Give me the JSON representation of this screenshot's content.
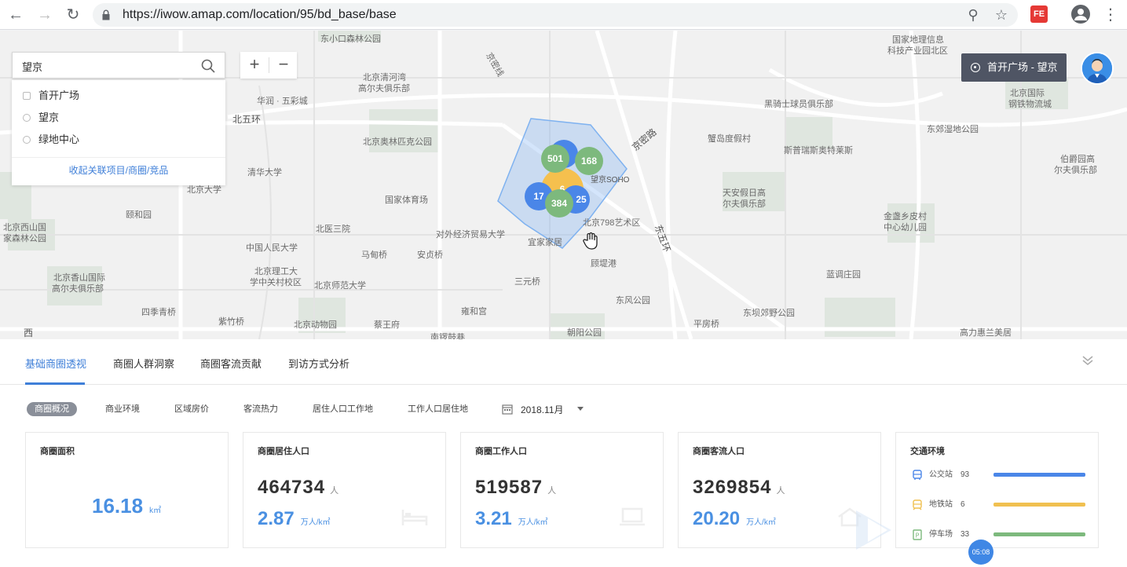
{
  "browser": {
    "url": "https://iwow.amap.com/location/95/bd_base/base",
    "extension_label": "FE"
  },
  "map": {
    "search": {
      "value": "望京",
      "placeholder": ""
    },
    "suggestions": [
      {
        "label": "首开广场",
        "icon": "building-icon"
      },
      {
        "label": "望京",
        "icon": "target-icon"
      },
      {
        "label": "绿地中心",
        "icon": "shield-icon"
      }
    ],
    "collapse_link": "收起关联项目/商圈/竞品",
    "zoom_in": "+",
    "zoom_out": "−",
    "location_button": "首开广场 - 望京",
    "clusters": [
      {
        "label": "",
        "color": "#4a86e8"
      },
      {
        "label": "501",
        "color": "#7db97d"
      },
      {
        "label": "168",
        "color": "#7db97d"
      },
      {
        "label": "6",
        "color": "#f5c04e"
      },
      {
        "label": "17",
        "color": "#4a86e8"
      },
      {
        "label": "25",
        "color": "#4a86e8"
      },
      {
        "label": "384",
        "color": "#7db97d"
      }
    ],
    "labels": [
      "东小口森林公园",
      "国家地理信息",
      "科技产业园北区",
      "北京清河湾",
      "高尔夫俱乐部",
      "华润 · 五彩城",
      "北五环",
      "北京奥林匹克公园",
      "清华大学",
      "北京大学",
      "颐和园",
      "北京西山国",
      "家森林公园",
      "国家体育场",
      "北医三院",
      "中国人民大学",
      "北京理工大",
      "学中关村校区",
      "北京香山国际",
      "高尔夫俱乐部",
      "四季青桥",
      "紫竹桥",
      "北京动物园",
      "北京师范大学",
      "马甸桥",
      "安贞桥",
      "对外经济贸易大学",
      "宜家家居",
      "蔡王府",
      "雍和宫",
      "三元桥",
      "北京798艺术区",
      "望京SOHO",
      "京密路",
      "东五环",
      "顾堤港",
      "东风公园",
      "朝阳公园",
      "平房桥",
      "南锣鼓巷",
      "蟹岛度假村",
      "斯普瑞斯奥特莱斯",
      "黑骑士球员俱乐部",
      "天安假日高",
      "尔夫俱乐部",
      "东郊湿地公园",
      "金盏乡皮村",
      "中心幼儿园",
      "北京国际",
      "钢铁物流城",
      "伯爵园高",
      "尔夫俱乐部",
      "蓝调庄园",
      "东坝郊野公园",
      "高力惠兰美居",
      "西",
      "京密线"
    ]
  },
  "tabs": [
    {
      "label": "基础商圈透视",
      "active": true
    },
    {
      "label": "商圈人群洞察",
      "active": false
    },
    {
      "label": "商圈客流贡献",
      "active": false
    },
    {
      "label": "到访方式分析",
      "active": false
    }
  ],
  "filters": {
    "chips": [
      "商圈概况",
      "商业环境",
      "区域房价",
      "客流热力",
      "居住人口工作地",
      "工作人口居住地"
    ],
    "active_chip": "商圈概况",
    "date": "2018.11月"
  },
  "cards": {
    "area": {
      "title": "商圈面积",
      "value": "16.18",
      "unit": "k㎡"
    },
    "residents": {
      "title": "商圈居住人口",
      "value": "464734",
      "unit": "人",
      "density": "2.87",
      "density_unit": "万人/k㎡"
    },
    "workers": {
      "title": "商圈工作人口",
      "value": "519587",
      "unit": "人",
      "density": "3.21",
      "density_unit": "万人/k㎡"
    },
    "visitors": {
      "title": "商圈客流人口",
      "value": "3269854",
      "unit": "人",
      "density": "20.20",
      "density_unit": "万人/k㎡"
    },
    "traffic": {
      "title": "交通环境",
      "rows": [
        {
          "label": "公交站",
          "value": "93",
          "color": "#4a86e8",
          "fraction": 1.0
        },
        {
          "label": "地铁站",
          "value": "6",
          "color": "#f0c050",
          "fraction": 1.0
        },
        {
          "label": "停车场",
          "value": "33",
          "color": "#7db97d",
          "fraction": 1.0
        }
      ]
    }
  },
  "overlay": {
    "timer": "05:08"
  }
}
